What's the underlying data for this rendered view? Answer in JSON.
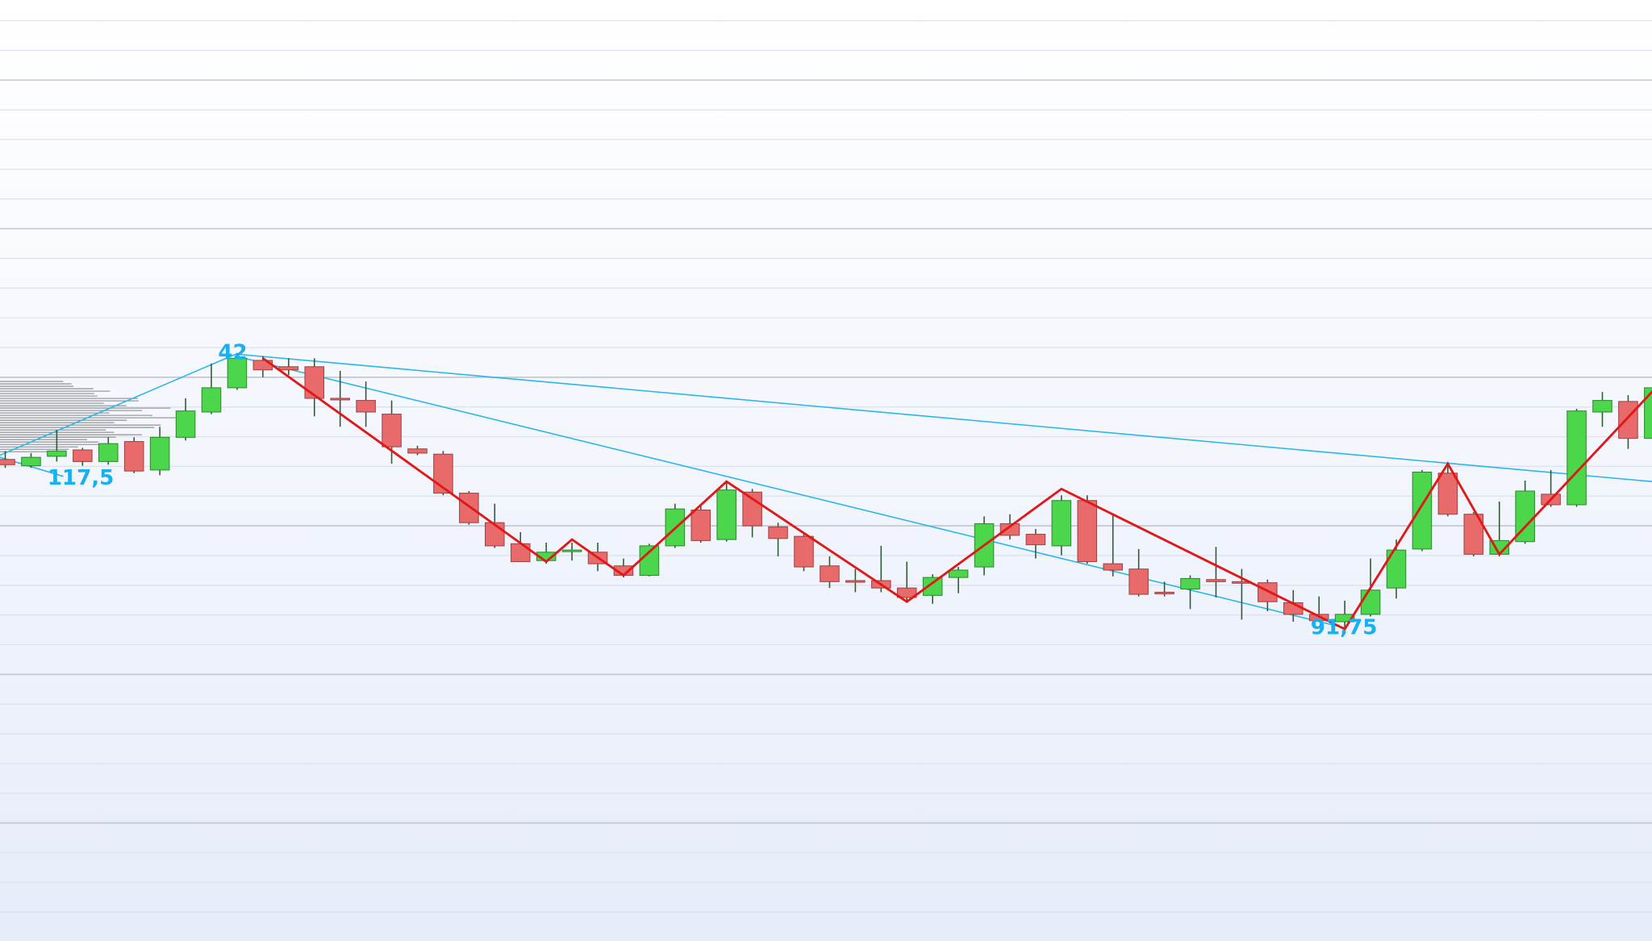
{
  "chart_data": {
    "type": "candlestick",
    "ylim": [
      0,
      893
    ],
    "up_color": "#4cd64c",
    "down_color": "#e86a6a",
    "wick_color": "#2f5a2f",
    "open": [
      457,
      451,
      460,
      466,
      455,
      474,
      447,
      478,
      502,
      525,
      551,
      545,
      545,
      515,
      513,
      500,
      467,
      462,
      425,
      397,
      377,
      361,
      370,
      369,
      356,
      347,
      375,
      409,
      381,
      426,
      393,
      384,
      356,
      342,
      342,
      335,
      328,
      345,
      355,
      396,
      386,
      375,
      418,
      358,
      353,
      331,
      334,
      343,
      341,
      340,
      321,
      310,
      303,
      310,
      335,
      372,
      444,
      405,
      367,
      379,
      424,
      414,
      502,
      512,
      477
    ],
    "high": [
      465,
      463,
      485,
      468,
      478,
      478,
      488,
      515,
      548,
      558,
      555,
      553,
      553,
      541,
      531,
      513,
      470,
      465,
      427,
      415,
      388,
      378,
      378,
      378,
      363,
      377,
      415,
      413,
      435,
      429,
      397,
      388,
      365,
      353,
      375,
      360,
      348,
      355,
      403,
      405,
      391,
      423,
      423,
      405,
      372,
      341,
      347,
      374,
      353,
      343,
      333,
      327,
      323,
      363,
      381,
      447,
      453,
      407,
      417,
      437,
      447,
      505,
      521,
      518,
      530
    ],
    "low": [
      449,
      449,
      455,
      451,
      452,
      444,
      442,
      475,
      500,
      523,
      535,
      537,
      498,
      488,
      488,
      453,
      461,
      423,
      395,
      373,
      360,
      358,
      361,
      351,
      345,
      346,
      373,
      378,
      379,
      383,
      365,
      351,
      335,
      331,
      331,
      321,
      320,
      330,
      347,
      381,
      363,
      366,
      358,
      346,
      327,
      327,
      315,
      326,
      305,
      313,
      303,
      303,
      297,
      308,
      325,
      370,
      403,
      365,
      365,
      377,
      412,
      412,
      488,
      467,
      475
    ],
    "close": [
      452,
      459,
      465,
      455,
      472,
      446,
      478,
      503,
      525,
      553,
      542,
      542,
      515,
      514,
      502,
      469,
      463,
      425,
      397,
      375,
      360,
      369,
      371,
      358,
      347,
      375,
      410,
      380,
      428,
      394,
      382,
      355,
      341,
      341,
      335,
      326,
      345,
      352,
      396,
      385,
      376,
      418,
      360,
      352,
      329,
      330,
      344,
      341,
      340,
      322,
      310,
      304,
      310,
      333,
      371,
      445,
      405,
      367,
      380,
      427,
      414,
      503,
      513,
      477,
      525
    ],
    "zigzag": {
      "color": "#e01818",
      "x": [
        10,
        21,
        22,
        24,
        28,
        35,
        41,
        52,
        56,
        58,
        64
      ],
      "values": [
        553,
        360,
        381,
        347,
        436,
        322,
        429,
        296,
        453,
        367,
        523
      ]
    },
    "annotations": [
      "42",
      "117,5",
      "91,75"
    ]
  }
}
